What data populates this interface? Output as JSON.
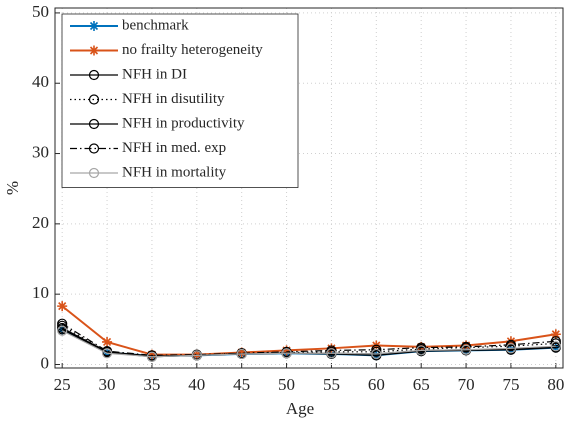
{
  "chart_data": {
    "type": "line",
    "xlabel": "Age",
    "ylabel": "%",
    "x": [
      25,
      30,
      35,
      40,
      45,
      50,
      55,
      60,
      65,
      70,
      75,
      80
    ],
    "xlim": [
      24.2,
      80.8
    ],
    "xticks": [
      25,
      30,
      35,
      40,
      45,
      50,
      55,
      60,
      65,
      70,
      75,
      80
    ],
    "ylim": [
      -0.5,
      50.7
    ],
    "yticks": [
      0,
      10,
      20,
      30,
      40,
      50
    ],
    "grid": true,
    "legend": "upper left",
    "series": [
      {
        "name": "benchmark",
        "color": "#0072bd",
        "linestyle": "solid",
        "marker": "star",
        "values": [
          5.0,
          1.7,
          1.2,
          1.3,
          1.5,
          1.6,
          1.5,
          1.3,
          1.9,
          2.0,
          2.1,
          2.4
        ]
      },
      {
        "name": "no frailty heterogeneity",
        "color": "#d95319",
        "linestyle": "solid",
        "marker": "star",
        "values": [
          8.3,
          3.2,
          1.4,
          1.4,
          1.7,
          2.0,
          2.3,
          2.7,
          2.5,
          2.7,
          3.3,
          4.3
        ]
      },
      {
        "name": "NFH in DI",
        "color": "#000000",
        "linestyle": "solid",
        "marker": "circle",
        "values": [
          5.2,
          1.8,
          1.2,
          1.3,
          1.5,
          1.6,
          1.6,
          1.5,
          2.0,
          2.1,
          2.2,
          2.5
        ]
      },
      {
        "name": "NFH in disutility",
        "color": "#000000",
        "linestyle": "dotted",
        "marker": "circle",
        "values": [
          5.5,
          1.8,
          1.2,
          1.3,
          1.6,
          1.7,
          1.8,
          1.8,
          2.2,
          2.4,
          2.6,
          3.0
        ]
      },
      {
        "name": "NFH in productivity",
        "color": "#000000",
        "linestyle": "solid",
        "marker": "circle",
        "values": [
          5.0,
          1.7,
          1.1,
          1.3,
          1.5,
          1.6,
          1.5,
          1.3,
          1.9,
          2.0,
          2.1,
          2.4
        ]
      },
      {
        "name": "NFH in med. exp",
        "color": "#000000",
        "linestyle": "dashdot",
        "marker": "circle",
        "values": [
          5.8,
          1.9,
          1.3,
          1.4,
          1.6,
          1.8,
          2.0,
          2.1,
          2.4,
          2.5,
          2.8,
          3.3
        ]
      },
      {
        "name": "NFH in mortality",
        "color": "#a6a6a6",
        "linestyle": "solid",
        "marker": "circle",
        "values": [
          4.8,
          1.6,
          1.1,
          1.3,
          1.5,
          1.6,
          1.6,
          1.5,
          2.0,
          2.1,
          2.3,
          2.6
        ]
      }
    ]
  }
}
